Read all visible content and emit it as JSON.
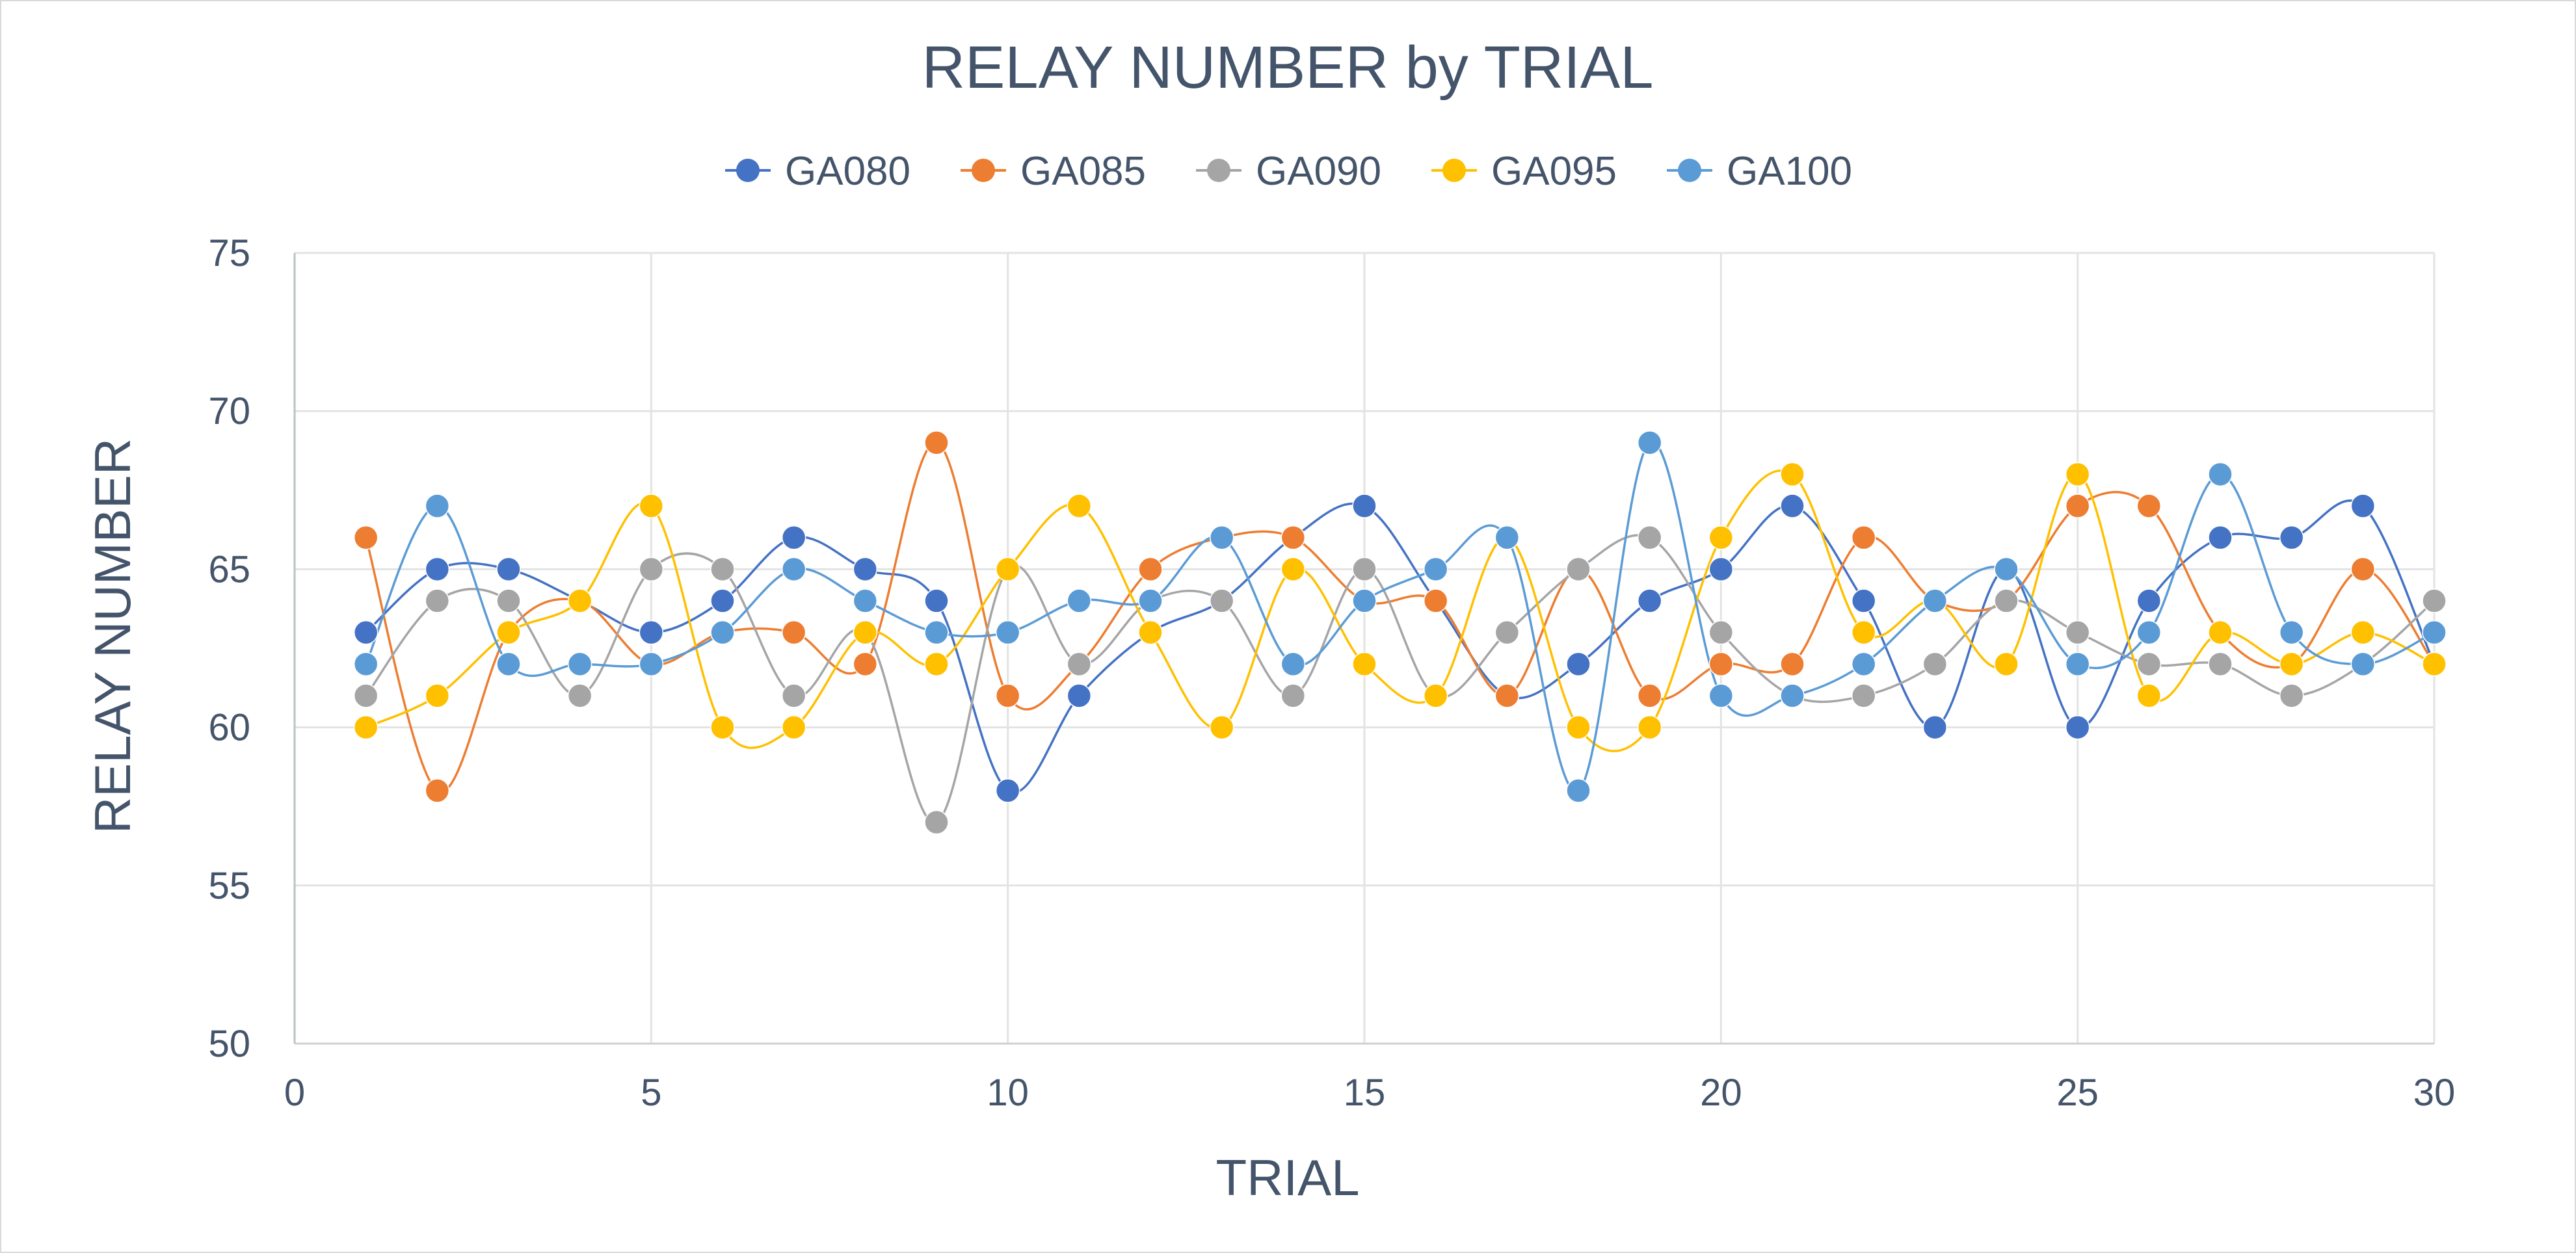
{
  "chart_data": {
    "type": "scatter",
    "title": "RELAY NUMBER by TRIAL",
    "xlabel": "TRIAL",
    "ylabel": "RELAY NUMBER",
    "xlim": [
      0,
      30
    ],
    "ylim": [
      50,
      75
    ],
    "xticks": [
      0,
      5,
      10,
      15,
      20,
      25,
      30
    ],
    "yticks": [
      50,
      55,
      60,
      65,
      70,
      75
    ],
    "grid": true,
    "smooth_lines": true,
    "legend_position": "top",
    "x": [
      1,
      2,
      3,
      4,
      5,
      6,
      7,
      8,
      9,
      10,
      11,
      12,
      13,
      14,
      15,
      16,
      17,
      18,
      19,
      20,
      21,
      22,
      23,
      24,
      25,
      26,
      27,
      28,
      29,
      30
    ],
    "series": [
      {
        "name": "GA080",
        "color": "#4472c4",
        "values": [
          63,
          65,
          65,
          64,
          63,
          64,
          66,
          65,
          64,
          58,
          61,
          63,
          64,
          66,
          67,
          64,
          61,
          62,
          64,
          65,
          67,
          64,
          60,
          65,
          60,
          64,
          66,
          66,
          67,
          62
        ]
      },
      {
        "name": "GA085",
        "color": "#ed7d31",
        "values": [
          66,
          58,
          63,
          64,
          62,
          63,
          63,
          62,
          69,
          61,
          62,
          65,
          66,
          66,
          64,
          64,
          61,
          65,
          61,
          62,
          62,
          66,
          64,
          64,
          67,
          67,
          63,
          62,
          65,
          62
        ]
      },
      {
        "name": "GA090",
        "color": "#a5a5a5",
        "values": [
          61,
          64,
          64,
          61,
          65,
          65,
          61,
          63,
          57,
          65,
          62,
          64,
          64,
          61,
          65,
          61,
          63,
          65,
          66,
          63,
          61,
          61,
          62,
          64,
          63,
          62,
          62,
          61,
          62,
          64
        ]
      },
      {
        "name": "GA095",
        "color": "#ffc000",
        "values": [
          60,
          61,
          63,
          64,
          67,
          60,
          60,
          63,
          62,
          65,
          67,
          63,
          60,
          65,
          62,
          61,
          66,
          60,
          60,
          66,
          68,
          63,
          64,
          62,
          68,
          61,
          63,
          62,
          63,
          62
        ]
      },
      {
        "name": "GA100",
        "color": "#5b9bd5",
        "values": [
          62,
          67,
          62,
          62,
          62,
          63,
          65,
          64,
          63,
          63,
          64,
          64,
          66,
          62,
          64,
          65,
          66,
          58,
          69,
          61,
          61,
          62,
          64,
          65,
          62,
          63,
          68,
          63,
          62,
          63
        ]
      }
    ]
  }
}
